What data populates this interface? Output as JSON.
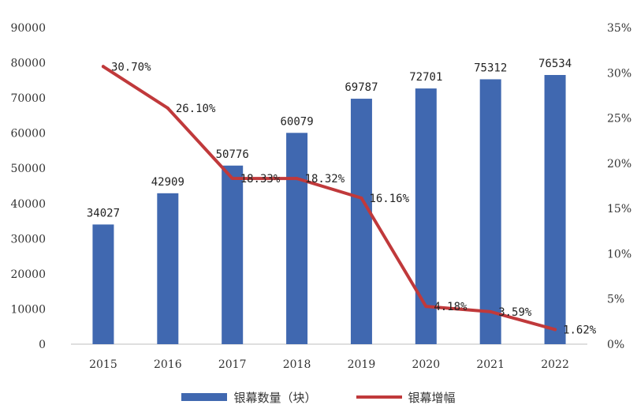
{
  "chart_data": {
    "type": "bar",
    "categories": [
      "2015",
      "2016",
      "2017",
      "2018",
      "2019",
      "2020",
      "2021",
      "2022"
    ],
    "series": [
      {
        "name": "银幕数量（块）",
        "type": "bar",
        "axis": "left",
        "color": "#4068B0",
        "values": [
          34027,
          42909,
          50776,
          60079,
          69787,
          72701,
          75312,
          76534
        ],
        "labels": [
          "34027",
          "42909",
          "50776",
          "60079",
          "69787",
          "72701",
          "75312",
          "76534"
        ]
      },
      {
        "name": "银幕增幅",
        "type": "line",
        "axis": "right",
        "color": "#C0393B",
        "values": [
          30.7,
          26.1,
          18.33,
          18.32,
          16.16,
          4.18,
          3.59,
          1.62
        ],
        "labels": [
          "30.70%",
          "26.10%",
          "18.33%",
          "18.32%",
          "16.16%",
          "4.18%",
          "3.59%",
          "1.62%"
        ]
      }
    ],
    "y_left": {
      "ylim": [
        0,
        90000
      ],
      "ticks": [
        "0",
        "10000",
        "20000",
        "30000",
        "40000",
        "50000",
        "60000",
        "70000",
        "80000",
        "90000"
      ]
    },
    "y_right": {
      "ylim": [
        0,
        35
      ],
      "ticks": [
        "0%",
        "5%",
        "10%",
        "15%",
        "20%",
        "25%",
        "30%",
        "35%"
      ]
    },
    "grid": false,
    "legend": "bottom"
  }
}
